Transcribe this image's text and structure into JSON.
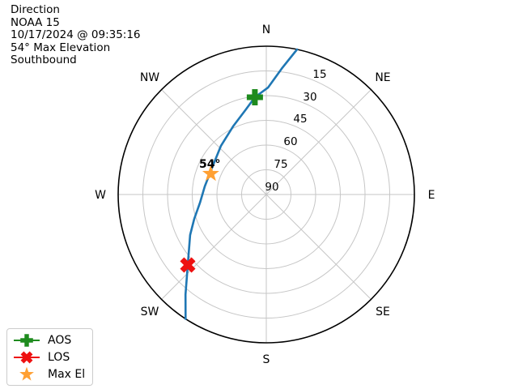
{
  "header": {
    "lines": [
      "Direction",
      "NOAA 15",
      "10/17/2024 @ 09:35:16",
      "54° Max Elevation",
      "Southbound"
    ]
  },
  "plot": {
    "compass_labels": [
      "N",
      "NE",
      "E",
      "SE",
      "S",
      "SW",
      "W",
      "NW"
    ],
    "radial_tick_labels": [
      "15",
      "30",
      "45",
      "60",
      "75",
      "90"
    ],
    "max_el_annotation": "54°",
    "grid_color": "#c6c6c6",
    "outline_color": "#000000"
  },
  "legend": {
    "items": [
      {
        "label": "AOS"
      },
      {
        "label": "LOS"
      },
      {
        "label": "Max El"
      }
    ]
  },
  "chart_data": {
    "type": "line",
    "projection": "polar sky plot: azimuth clockwise from N at top; elevation 0° at outer edge, 90° at center",
    "title": "Direction",
    "satellite": "NOAA 15",
    "timestamp": "10/17/2024 @ 09:35:16",
    "max_elevation_deg": 54,
    "pass_direction": "Southbound",
    "angular_ticks": [
      "N",
      "NE",
      "E",
      "SE",
      "S",
      "SW",
      "W",
      "NW"
    ],
    "radial_ticks_elevation_deg": [
      15,
      30,
      45,
      60,
      75,
      90
    ],
    "grid": true,
    "legend_position": "lower-left",
    "series": [
      {
        "name": "satellite-pass-trajectory",
        "color": "#1f77b4",
        "point_format": "[azimuth_deg, elevation_deg]",
        "points": [
          [
            12,
            0
          ],
          [
            7,
            13
          ],
          [
            1,
            25
          ],
          [
            353.3,
            30.6
          ],
          [
            346,
            37.3
          ],
          [
            334,
            44
          ],
          [
            317,
            49.6
          ],
          [
            296,
            53.3
          ],
          [
            277.5,
            52.3
          ],
          [
            263,
            49.4
          ],
          [
            251.4,
            43.8
          ],
          [
            242,
            37.6
          ],
          [
            228.1,
            25.9
          ],
          [
            219,
            12
          ],
          [
            213,
            0
          ]
        ]
      }
    ],
    "markers": [
      {
        "name": "AOS",
        "symbol": "filled-plus",
        "color": "#1e8b1e",
        "az": 353.3,
        "el": 30.6
      },
      {
        "name": "LOS",
        "symbol": "filled-x",
        "color": "#ee1111",
        "az": 228.1,
        "el": 25.9
      },
      {
        "name": "Max El",
        "symbol": "star",
        "color": "#ffa033",
        "az": 290.5,
        "el": 54,
        "annotation": "54°"
      }
    ]
  }
}
